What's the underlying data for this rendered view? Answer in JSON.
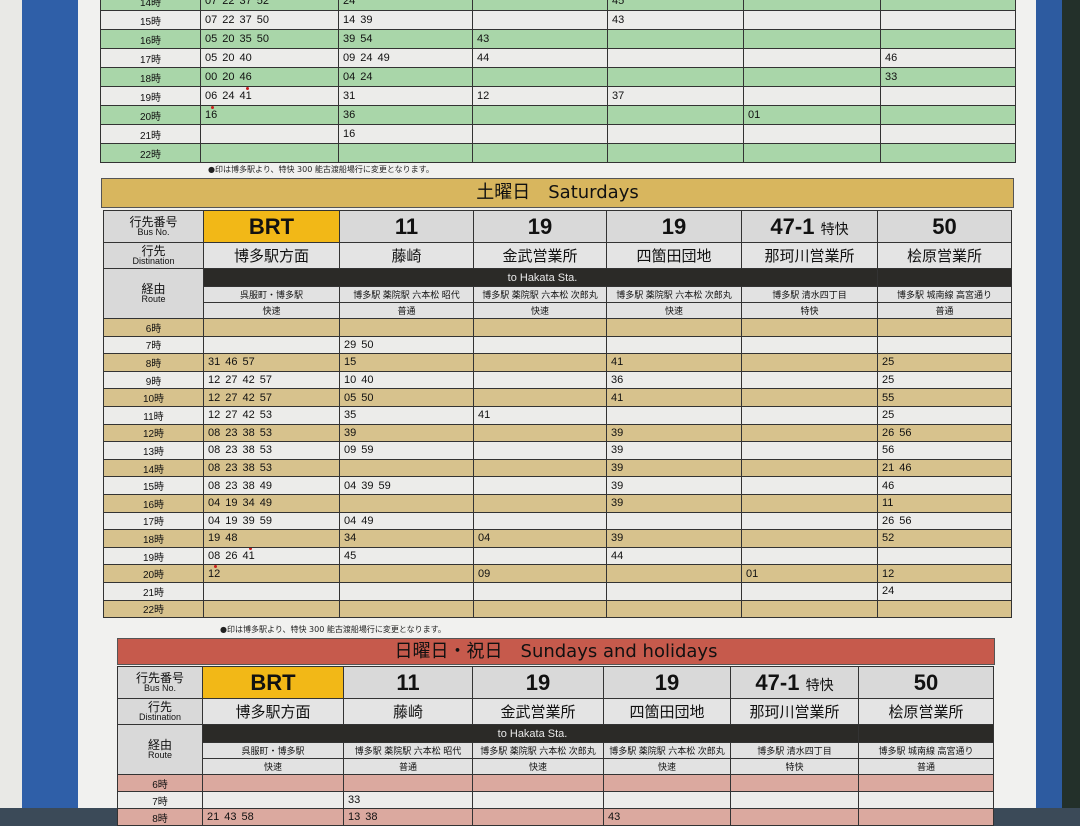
{
  "colors": {
    "weekday_row": "#a9d6a9",
    "saturday_bar": "#d8b65e",
    "saturday_row": "#d7c28d",
    "sunday_bar": "#c65a4c",
    "sunday_row": "#dba99f",
    "brt": "#f2b817",
    "mark": "#c81e1e"
  },
  "note": "●印は博多駅より、特快 300 能古渡船場行に変更となります。",
  "header_labels": {
    "bus_no_jp": "行先番号",
    "bus_no_en": "Bus No.",
    "dest_jp": "行先",
    "dest_en": "Distination",
    "route_jp": "経由",
    "route_en": "Route",
    "to_hakata": "to Hakata Sta."
  },
  "columns": [
    {
      "no": "BRT",
      "suffix": "",
      "dest": "博多駅方面",
      "via": "呉服町・博多駅",
      "type": "快速"
    },
    {
      "no": "11",
      "suffix": "",
      "dest": "藤崎",
      "via": "博多駅 薬院駅 六本松 昭代",
      "type": "普通"
    },
    {
      "no": "19",
      "suffix": "",
      "dest": "金武営業所",
      "via": "博多駅 薬院駅 六本松 次郎丸",
      "type": "快速"
    },
    {
      "no": "19",
      "suffix": "",
      "dest": "四箇田団地",
      "via": "博多駅 薬院駅 六本松 次郎丸",
      "type": "快速"
    },
    {
      "no": "47-1",
      "suffix": "特快",
      "dest": "那珂川営業所",
      "via": "博多駅 清水四丁目",
      "type": "特快"
    },
    {
      "no": "50",
      "suffix": "",
      "dest": "桧原営業所",
      "via": "博多駅 城南線 高宮通り",
      "type": "普通"
    }
  ],
  "weekday": {
    "rows": [
      {
        "hour": "14時",
        "cells": [
          [
            "07",
            "22",
            "37",
            "52"
          ],
          [
            "24"
          ],
          [],
          [
            "45"
          ],
          [],
          []
        ]
      },
      {
        "hour": "15時",
        "cells": [
          [
            "07",
            "22",
            "37",
            "50"
          ],
          [
            "14",
            "39"
          ],
          [],
          [
            "43"
          ],
          [],
          []
        ]
      },
      {
        "hour": "16時",
        "cells": [
          [
            "05",
            "20",
            "35",
            "50"
          ],
          [
            "39",
            "54"
          ],
          [
            "43"
          ],
          [],
          [],
          []
        ]
      },
      {
        "hour": "17時",
        "cells": [
          [
            "05",
            "20",
            "40"
          ],
          [
            "09",
            "24",
            "49"
          ],
          [
            "44"
          ],
          [],
          [],
          [
            "46"
          ]
        ]
      },
      {
        "hour": "18時",
        "cells": [
          [
            "00",
            "20",
            "46"
          ],
          [
            "04",
            "24"
          ],
          [],
          [],
          [],
          [
            "33"
          ]
        ]
      },
      {
        "hour": "19時",
        "cells": [
          [
            "06",
            "24",
            "41"
          ],
          [
            "31"
          ],
          [
            "12"
          ],
          [
            "37"
          ],
          [],
          []
        ]
      },
      {
        "hour": "20時",
        "cells": [
          [
            "16"
          ],
          [
            "36"
          ],
          [],
          [],
          [
            "01"
          ],
          []
        ]
      },
      {
        "hour": "21時",
        "cells": [
          [],
          [
            "16"
          ],
          [],
          [],
          [],
          []
        ]
      },
      {
        "hour": "22時",
        "cells": [
          [],
          [],
          [],
          [],
          [],
          []
        ]
      }
    ],
    "marked": [
      {
        "hour": "19時",
        "col": 0,
        "time": "41"
      },
      {
        "hour": "20時",
        "col": 0,
        "time": "16"
      }
    ]
  },
  "saturday": {
    "title": "土曜日　Saturdays",
    "rows": [
      {
        "hour": "6時",
        "cells": [
          [],
          [],
          [],
          [],
          [],
          []
        ]
      },
      {
        "hour": "7時",
        "cells": [
          [],
          [
            "29",
            "50"
          ],
          [],
          [],
          [],
          []
        ]
      },
      {
        "hour": "8時",
        "cells": [
          [
            "31",
            "46",
            "57"
          ],
          [
            "15"
          ],
          [],
          [
            "41"
          ],
          [],
          [
            "25"
          ]
        ]
      },
      {
        "hour": "9時",
        "cells": [
          [
            "12",
            "27",
            "42",
            "57"
          ],
          [
            "10",
            "40"
          ],
          [],
          [
            "36"
          ],
          [],
          [
            "25"
          ]
        ]
      },
      {
        "hour": "10時",
        "cells": [
          [
            "12",
            "27",
            "42",
            "57"
          ],
          [
            "05",
            "50"
          ],
          [],
          [
            "41"
          ],
          [],
          [
            "55"
          ]
        ]
      },
      {
        "hour": "11時",
        "cells": [
          [
            "12",
            "27",
            "42",
            "53"
          ],
          [
            "35"
          ],
          [
            "41"
          ],
          [],
          [],
          [
            "25"
          ]
        ]
      },
      {
        "hour": "12時",
        "cells": [
          [
            "08",
            "23",
            "38",
            "53"
          ],
          [
            "39"
          ],
          [],
          [
            "39"
          ],
          [],
          [
            "26",
            "56"
          ]
        ]
      },
      {
        "hour": "13時",
        "cells": [
          [
            "08",
            "23",
            "38",
            "53"
          ],
          [
            "09",
            "59"
          ],
          [],
          [
            "39"
          ],
          [],
          [
            "56"
          ]
        ]
      },
      {
        "hour": "14時",
        "cells": [
          [
            "08",
            "23",
            "38",
            "53"
          ],
          [],
          [],
          [
            "39"
          ],
          [],
          [
            "21",
            "46"
          ]
        ]
      },
      {
        "hour": "15時",
        "cells": [
          [
            "08",
            "23",
            "38",
            "49"
          ],
          [
            "04",
            "39",
            "59"
          ],
          [],
          [
            "39"
          ],
          [],
          [
            "46"
          ]
        ]
      },
      {
        "hour": "16時",
        "cells": [
          [
            "04",
            "19",
            "34",
            "49"
          ],
          [],
          [],
          [
            "39"
          ],
          [],
          [
            "11"
          ]
        ]
      },
      {
        "hour": "17時",
        "cells": [
          [
            "04",
            "19",
            "39",
            "59"
          ],
          [
            "04",
            "49"
          ],
          [],
          [],
          [],
          [
            "26",
            "56"
          ]
        ]
      },
      {
        "hour": "18時",
        "cells": [
          [
            "19",
            "48"
          ],
          [
            "34"
          ],
          [
            "04"
          ],
          [
            "39"
          ],
          [],
          [
            "52"
          ]
        ]
      },
      {
        "hour": "19時",
        "cells": [
          [
            "08",
            "26",
            "41"
          ],
          [
            "45"
          ],
          [],
          [
            "44"
          ],
          [],
          []
        ]
      },
      {
        "hour": "20時",
        "cells": [
          [
            "12"
          ],
          [],
          [
            "09"
          ],
          [],
          [
            "01"
          ],
          [
            "12"
          ]
        ]
      },
      {
        "hour": "21時",
        "cells": [
          [],
          [],
          [],
          [],
          [],
          [
            "24"
          ]
        ]
      },
      {
        "hour": "22時",
        "cells": [
          [],
          [],
          [],
          [],
          [],
          []
        ]
      }
    ],
    "marked": [
      {
        "hour": "19時",
        "col": 0,
        "time": "41"
      },
      {
        "hour": "20時",
        "col": 0,
        "time": "12"
      }
    ]
  },
  "sunday": {
    "title": "日曜日・祝日　Sundays and holidays",
    "rows": [
      {
        "hour": "6時",
        "cells": [
          [],
          [],
          [],
          [],
          [],
          []
        ]
      },
      {
        "hour": "7時",
        "cells": [
          [],
          [
            "33"
          ],
          [],
          [],
          [],
          []
        ]
      },
      {
        "hour": "8時",
        "cells": [
          [
            "21",
            "43",
            "58"
          ],
          [
            "13",
            "38"
          ],
          [],
          [
            "43"
          ],
          [],
          []
        ]
      }
    ],
    "marked": []
  }
}
